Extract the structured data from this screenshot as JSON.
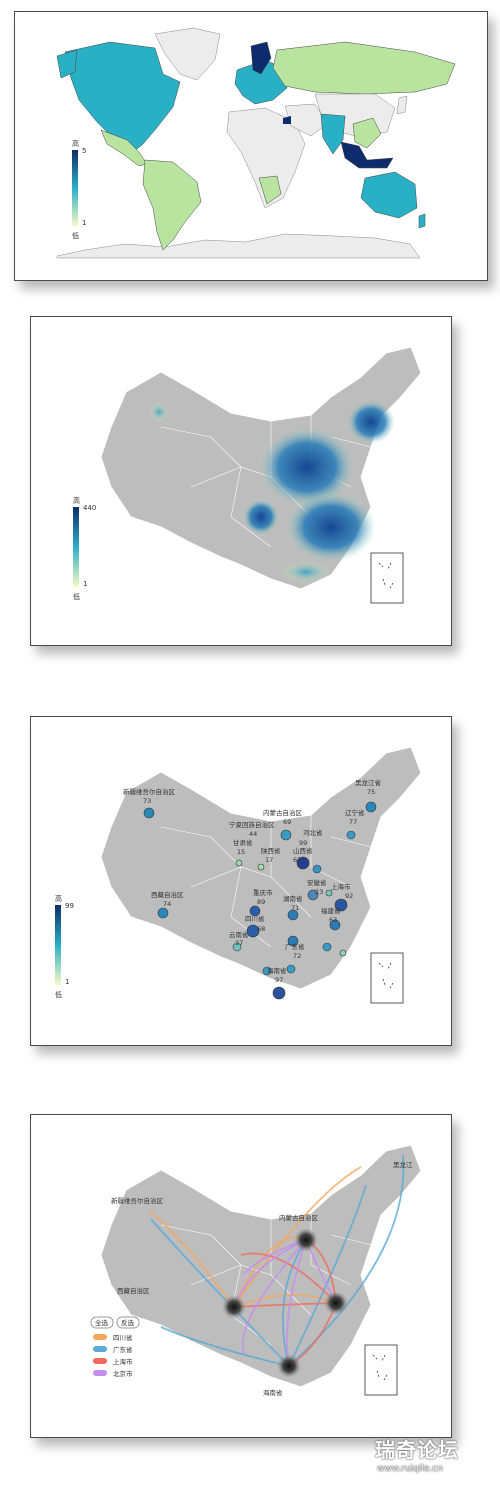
{
  "panel1": {
    "legend": {
      "high": "5",
      "low": "1",
      "high_label": "高",
      "low_label": "低"
    },
    "colors": {
      "land": "#ececec",
      "light": "#b9e4a0",
      "mid": "#2ab0c5",
      "dark": "#0e2c6b",
      "ocean": "#ffffff"
    }
  },
  "panel2": {
    "legend": {
      "high": "440",
      "high_label": "高",
      "low": "1",
      "low_label": "低"
    }
  },
  "panel3": {
    "legend": {
      "high": "99",
      "high_label": "高",
      "low": "1",
      "low_label": "低"
    },
    "regions": [
      {
        "name": "新疆维吾尔自治区",
        "value": "73"
      },
      {
        "name": "黑龙江省",
        "value": "75"
      },
      {
        "name": "辽宁省",
        "value": "77"
      },
      {
        "name": "内蒙古自治区",
        "value": "69"
      },
      {
        "name": "宁夏回族自治区",
        "value": "44"
      },
      {
        "name": "甘肃省",
        "value": "15"
      },
      {
        "name": "陕西省",
        "value": "17"
      },
      {
        "name": "河北省",
        "value": "99"
      },
      {
        "name": "山西省",
        "value": "62"
      },
      {
        "name": "安徽省",
        "value": "23"
      },
      {
        "name": "上海市",
        "value": "92"
      },
      {
        "name": "西藏自治区",
        "value": "74"
      },
      {
        "name": "重庆市",
        "value": "89"
      },
      {
        "name": "湖南省",
        "value": "71"
      },
      {
        "name": "福建省",
        "value": "63"
      },
      {
        "name": "四川省",
        "value": "68"
      },
      {
        "name": "云南省",
        "value": "37"
      },
      {
        "name": "广东省",
        "value": "72"
      },
      {
        "name": "海南省",
        "value": "97"
      }
    ]
  },
  "panel4": {
    "buttons": {
      "select_all": "全选",
      "invert": "反选"
    },
    "legend": [
      {
        "name": "四川省",
        "color": "#f3a65c"
      },
      {
        "name": "广东省",
        "color": "#5aa9d6"
      },
      {
        "name": "上海市",
        "color": "#ef6a5f"
      },
      {
        "name": "北京市",
        "color": "#c38ef0"
      }
    ],
    "labels": [
      "新疆维吾尔自治区",
      "西藏自治区",
      "黑龙江",
      "内蒙古自治区",
      "海南省"
    ]
  },
  "watermark": {
    "title": "瑞奇论坛",
    "subtitle": "www.ruiqile.cn"
  }
}
